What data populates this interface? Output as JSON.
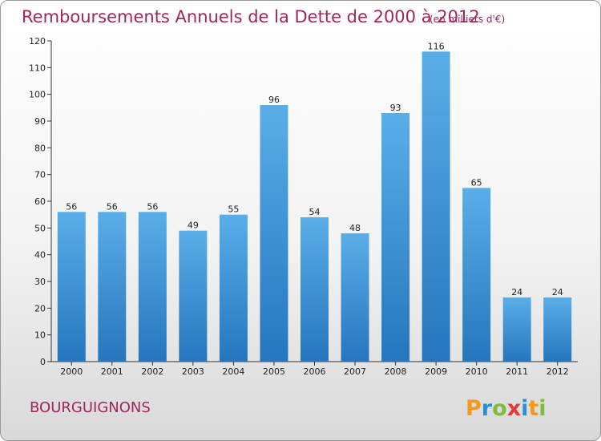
{
  "chart_data": {
    "type": "bar",
    "title": "Remboursements Annuels de la Dette de 2000 à 2012",
    "subtitle": "(en milliers d'€)",
    "categories": [
      "2000",
      "2001",
      "2002",
      "2003",
      "2004",
      "2005",
      "2006",
      "2007",
      "2008",
      "2009",
      "2010",
      "2011",
      "2012"
    ],
    "values": [
      56,
      56,
      56,
      49,
      55,
      96,
      54,
      48,
      93,
      116,
      65,
      24,
      24
    ],
    "ylim": [
      0,
      120
    ],
    "yticks": [
      0,
      10,
      20,
      30,
      40,
      50,
      60,
      70,
      80,
      90,
      100,
      110,
      120
    ],
    "xlabel": "",
    "ylabel": "",
    "grid": false
  },
  "footer": {
    "commune": "BOURGUIGNONS",
    "brand": "Proxiti"
  },
  "colors": {
    "bar_top": "#5aaee8",
    "bar_bottom": "#2576bd",
    "title": "#a0265c",
    "axis": "#333333"
  }
}
